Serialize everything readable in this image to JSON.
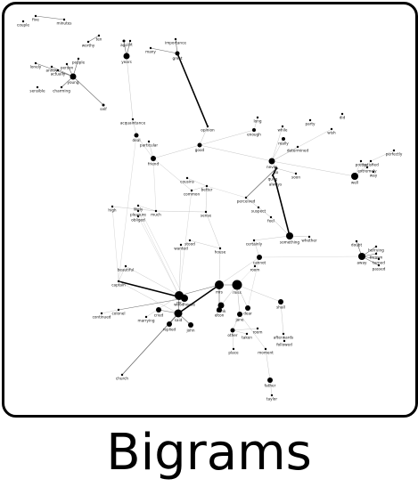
{
  "caption": "Bigrams",
  "colors": {
    "ink": "#000000",
    "edge_light": "#b8b8b8",
    "edge_mid": "#6a6a6a"
  },
  "nodes": [
    {
      "id": "five",
      "label": "five"
    },
    {
      "id": "minutes",
      "label": "minutes"
    },
    {
      "id": "couple",
      "label": "couple"
    },
    {
      "id": "ten",
      "label": "ten"
    },
    {
      "id": "worthy",
      "label": "worthy"
    },
    {
      "id": "ago",
      "label": "ago"
    },
    {
      "id": "years",
      "label": "years"
    },
    {
      "id": "lot",
      "label": "lot"
    },
    {
      "id": "many",
      "label": "many"
    },
    {
      "id": "importance",
      "label": "importance"
    },
    {
      "id": "great",
      "label": "great"
    },
    {
      "id": "lonely",
      "label": "lonely"
    },
    {
      "id": "annoy",
      "label": "annoy"
    },
    {
      "id": "actually",
      "label": "actually"
    },
    {
      "id": "person",
      "label": "person"
    },
    {
      "id": "people",
      "label": "people"
    },
    {
      "id": "young",
      "label": "young"
    },
    {
      "id": "charming",
      "label": "charming"
    },
    {
      "id": "sensible",
      "label": "sensible"
    },
    {
      "id": "self",
      "label": "self"
    },
    {
      "id": "acquaintance",
      "label": "acquaintance"
    },
    {
      "id": "deal",
      "label": "deal"
    },
    {
      "id": "particular",
      "label": "particular"
    },
    {
      "id": "friend",
      "label": "friend"
    },
    {
      "id": "good",
      "label": "good"
    },
    {
      "id": "opinion",
      "label": "opinion"
    },
    {
      "id": "long",
      "label": "long"
    },
    {
      "id": "enough",
      "label": "enough"
    },
    {
      "id": "while",
      "label": "while"
    },
    {
      "id": "party",
      "label": "party"
    },
    {
      "id": "did",
      "label": "did"
    },
    {
      "id": "wish",
      "label": "wish"
    },
    {
      "id": "determined",
      "label": "determined"
    },
    {
      "id": "really",
      "label": "really"
    },
    {
      "id": "never",
      "label": "never"
    },
    {
      "id": "so",
      "label": "so"
    },
    {
      "id": "soon",
      "label": "soon"
    },
    {
      "id": "quite",
      "label": "quite"
    },
    {
      "id": "always",
      "label": "always"
    },
    {
      "id": "perfectly",
      "label": "perfectly"
    },
    {
      "id": "satisfied",
      "label": "satisfied"
    },
    {
      "id": "way",
      "label": "way"
    },
    {
      "id": "well",
      "label": "well"
    },
    {
      "id": "pretty",
      "label": "pretty"
    },
    {
      "id": "extremely",
      "label": "extremely"
    },
    {
      "id": "cousins",
      "label": "cousins"
    },
    {
      "id": "common",
      "label": "common"
    },
    {
      "id": "better",
      "label": "better"
    },
    {
      "id": "sense",
      "label": "sense"
    },
    {
      "id": "much",
      "label": "much"
    },
    {
      "id": "likely",
      "label": "likely"
    },
    {
      "id": "pleasure",
      "label": "pleasure"
    },
    {
      "id": "obliged",
      "label": "obliged"
    },
    {
      "id": "high",
      "label": "high"
    },
    {
      "id": "perceived",
      "label": "perceived"
    },
    {
      "id": "suspect",
      "label": "suspect"
    },
    {
      "id": "feel",
      "label": "feel"
    },
    {
      "id": "something",
      "label": "something"
    },
    {
      "id": "doubt",
      "label": "doubt"
    },
    {
      "id": "hurrying",
      "label": "hurrying"
    },
    {
      "id": "thrown",
      "label": "thrown"
    },
    {
      "id": "turned",
      "label": "turned"
    },
    {
      "id": "passed",
      "label": "passed"
    },
    {
      "id": "away",
      "label": "away"
    },
    {
      "id": "whether",
      "label": "whether"
    },
    {
      "id": "certainly",
      "label": "certainly"
    },
    {
      "id": "cannot",
      "label": "cannot"
    },
    {
      "id": "room",
      "label": "room"
    },
    {
      "id": "house",
      "label": "house"
    },
    {
      "id": "wanted",
      "label": "wanted"
    },
    {
      "id": "stood",
      "label": "stood"
    },
    {
      "id": "colonel",
      "label": "colonel"
    },
    {
      "id": "captain",
      "label": "captain"
    },
    {
      "id": "continued",
      "label": "continued"
    },
    {
      "id": "beautiful",
      "label": "beautiful"
    },
    {
      "id": "marrying",
      "label": "marrying"
    },
    {
      "id": "woodhouse",
      "label": "woodhouse"
    },
    {
      "id": "mr",
      "label": "mr"
    },
    {
      "id": "mrs",
      "label": "mrs"
    },
    {
      "id": "miss",
      "label": "miss"
    },
    {
      "id": "said",
      "label": "said"
    },
    {
      "id": "replied",
      "label": "replied"
    },
    {
      "id": "cried",
      "label": "cried"
    },
    {
      "id": "john",
      "label": "john"
    },
    {
      "id": "frank",
      "label": "frank"
    },
    {
      "id": "jane",
      "label": "jane"
    },
    {
      "id": "dear",
      "label": "dear"
    },
    {
      "id": "elton",
      "label": "elton"
    },
    {
      "id": "other",
      "label": "other"
    },
    {
      "id": "taken",
      "label": "taken"
    },
    {
      "id": "room2",
      "label": "room"
    },
    {
      "id": "shall",
      "label": "shall"
    },
    {
      "id": "afterwards",
      "label": "afterwards"
    },
    {
      "id": "followed",
      "label": "followed"
    },
    {
      "id": "moment",
      "label": "moment"
    },
    {
      "id": "place",
      "label": "place"
    },
    {
      "id": "father",
      "label": "father"
    },
    {
      "id": "church",
      "label": "church"
    },
    {
      "id": "taylor",
      "label": "taylor"
    }
  ]
}
